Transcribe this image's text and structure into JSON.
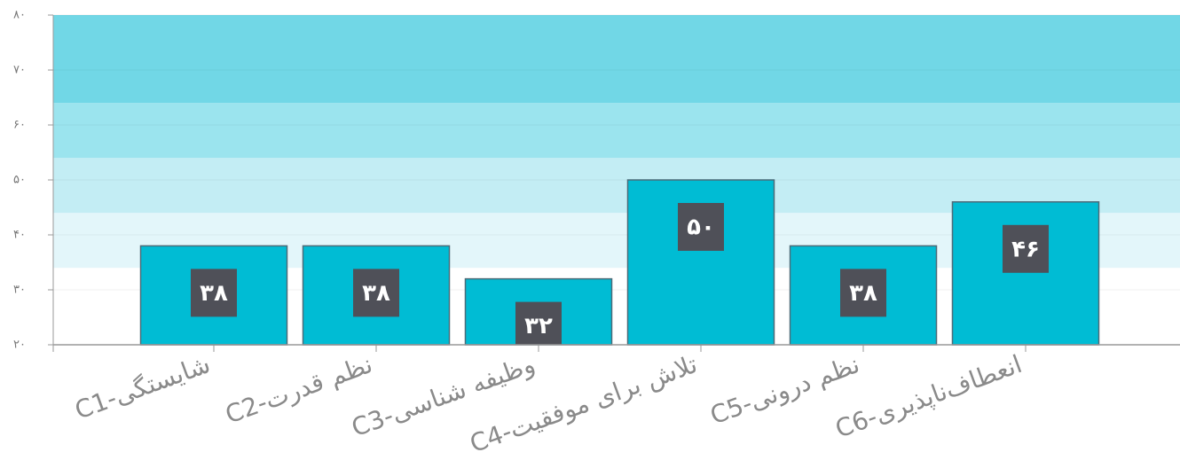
{
  "chart_data": {
    "type": "bar",
    "categories": [
      "C1-شایستگی",
      "C2-نظم قدرت",
      "C3-وظیفه شناسی",
      "C4-تلاش برای موفقیت",
      "C5-نظم درونی",
      "C6-انعطاف‌ناپذیری"
    ],
    "values": [
      38,
      38,
      32,
      50,
      38,
      46
    ],
    "value_labels": [
      "۳۸",
      "۳۸",
      "۳۲",
      "۵۰",
      "۳۸",
      "۴۶"
    ],
    "color": "#00bcd4",
    "ylim": [
      20,
      80
    ],
    "yticks": [
      {
        "value": 20,
        "label": "۲۰"
      },
      {
        "value": 30,
        "label": "۳۰"
      },
      {
        "value": 40,
        "label": "۴۰"
      },
      {
        "value": 50,
        "label": "۵۰"
      },
      {
        "value": 60,
        "label": "۶۰"
      },
      {
        "value": 70,
        "label": "۷۰"
      },
      {
        "value": 80,
        "label": "۸۰"
      }
    ],
    "bands": [
      {
        "from": 34,
        "to": 44,
        "color": "#e3f6fa"
      },
      {
        "from": 44,
        "to": 54,
        "color": "#c3edf4"
      },
      {
        "from": 54,
        "to": 64,
        "color": "#9be4ee"
      },
      {
        "from": 64,
        "to": 80,
        "color": "#71d7e6"
      }
    ],
    "grid": true
  }
}
